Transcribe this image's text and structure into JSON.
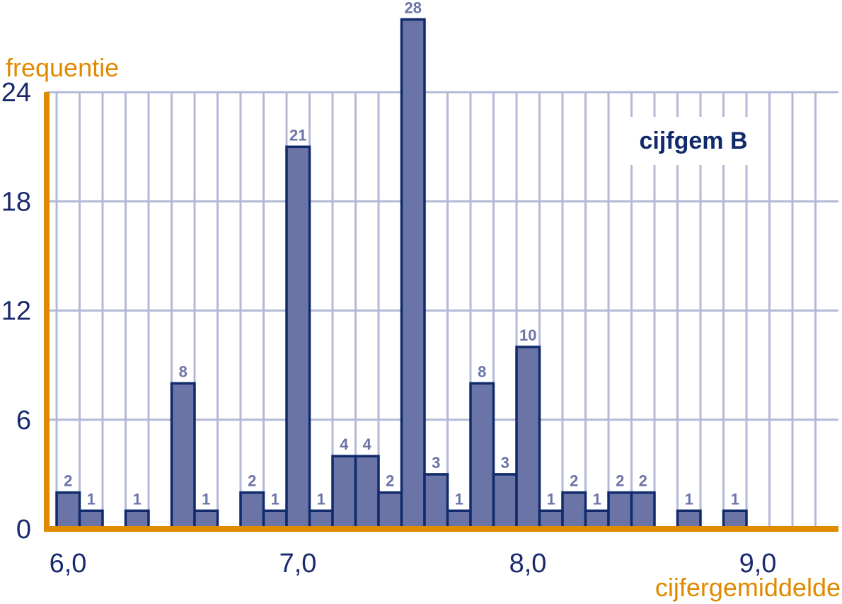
{
  "chart_data": {
    "type": "bar",
    "title": "cijfgem B",
    "xlabel": "cijfergemiddelde",
    "ylabel": "frequentie",
    "xlim": [
      5.95,
      9.35
    ],
    "ylim": [
      0,
      24
    ],
    "xticks": [
      "6,0",
      "7,0",
      "8,0",
      "9,0"
    ],
    "yticks": [
      "0",
      "6",
      "12",
      "18",
      "24"
    ],
    "bin_width": 0.1,
    "grid": true,
    "legend_position": "top-right",
    "colors": {
      "bar_fill": "#6b74a6",
      "bar_stroke": "#102a6b",
      "axis": "#e08a00",
      "grid": "#b3b9d6"
    },
    "x": [
      6.0,
      6.1,
      6.3,
      6.5,
      6.6,
      6.8,
      6.9,
      7.0,
      7.1,
      7.2,
      7.3,
      7.4,
      7.5,
      7.6,
      7.7,
      7.8,
      7.9,
      8.0,
      8.1,
      8.2,
      8.3,
      8.4,
      8.5,
      8.7,
      8.9
    ],
    "values": [
      2,
      1,
      1,
      8,
      1,
      2,
      1,
      21,
      1,
      4,
      4,
      2,
      28,
      3,
      1,
      8,
      3,
      10,
      1,
      2,
      1,
      2,
      2,
      1,
      1
    ]
  }
}
